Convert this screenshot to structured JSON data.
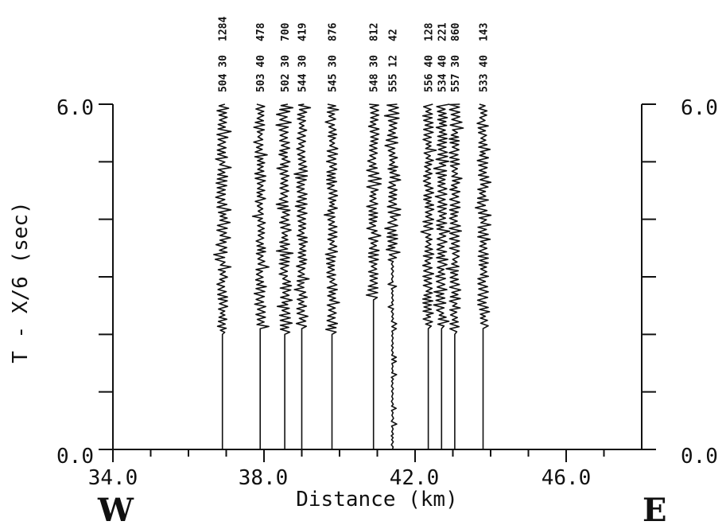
{
  "chart_data": {
    "type": "line",
    "xlabel": "Distance (km)",
    "ylabel": "T - X/6 (sec)",
    "xlim": [
      34.0,
      48.0
    ],
    "ylim": [
      0.0,
      6.0
    ],
    "x_tick_labels": [
      "34.0",
      "38.0",
      "42.0",
      "46.0"
    ],
    "y_tick_labels_left": [
      "0.0",
      "6.0"
    ],
    "y_tick_labels_right": [
      "0.0",
      "6.0"
    ],
    "x_ticks_major": [
      34,
      38,
      42,
      46
    ],
    "x_ticks_minor": [
      35,
      36,
      37,
      39,
      40,
      41,
      43,
      44,
      45,
      47
    ],
    "y_ticks": [
      0,
      1,
      2,
      3,
      4,
      5,
      6
    ],
    "west_label": "W",
    "east_label": "E",
    "trace_window_sec": [
      0.0,
      6.0
    ],
    "series": [
      {
        "x": 36.9,
        "lower_label": "504 30",
        "upper_label": "1284",
        "onset_sec": 2.0
      },
      {
        "x": 37.9,
        "lower_label": "503 40",
        "upper_label": "478",
        "onset_sec": 2.1
      },
      {
        "x": 38.55,
        "lower_label": "502 30",
        "upper_label": "700",
        "onset_sec": 2.0
      },
      {
        "x": 39.0,
        "lower_label": "544 30",
        "upper_label": "419",
        "onset_sec": 2.1
      },
      {
        "x": 39.8,
        "lower_label": "545 30",
        "upper_label": "876",
        "onset_sec": 2.0
      },
      {
        "x": 40.9,
        "lower_label": "548 30",
        "upper_label": "812",
        "onset_sec": 2.6
      },
      {
        "x": 41.4,
        "lower_label": "555 12",
        "upper_label": "42",
        "onset_sec": 0.0
      },
      {
        "x": 42.35,
        "lower_label": "556 40",
        "upper_label": "128",
        "onset_sec": 2.1
      },
      {
        "x": 42.7,
        "lower_label": "534 40",
        "upper_label": "221",
        "onset_sec": 2.1
      },
      {
        "x": 43.05,
        "lower_label": "557 30",
        "upper_label": "860",
        "onset_sec": 2.0
      },
      {
        "x": 43.8,
        "lower_label": "533 40",
        "upper_label": "143",
        "onset_sec": 2.1
      }
    ]
  }
}
